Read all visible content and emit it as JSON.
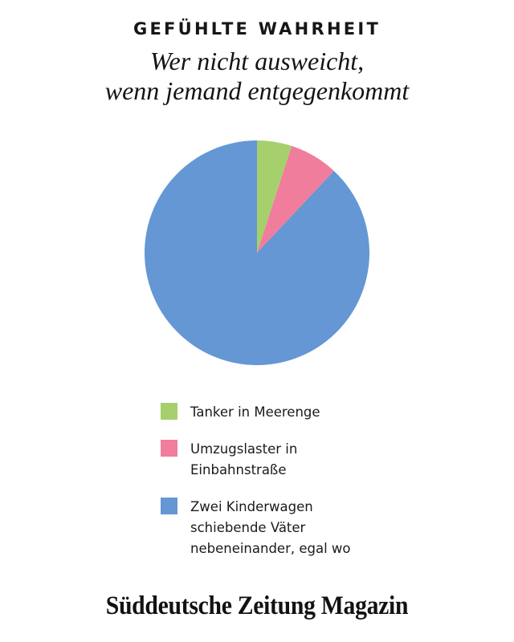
{
  "header": {
    "kicker": "GEFÜHLTE WAHRHEIT",
    "title": "Wer nicht ausweicht,\nwenn jemand entgegenkommt"
  },
  "chart_data": {
    "type": "pie",
    "title": "Wer nicht ausweicht, wenn jemand entgegenkommt",
    "series_name": "Gefühlte Wahrheit",
    "start_angle": "12 o'clock, clockwise",
    "values_unit": "%",
    "values_estimated_from_angles": true,
    "legend_position": "bottom",
    "slices": [
      {
        "label": "Tanker in Meerenge",
        "value": 5,
        "color": "#a6d06c"
      },
      {
        "label": "Umzugslaster in Einbahnstraße",
        "value": 7,
        "color": "#f07d9b"
      },
      {
        "label": "Zwei Kinderwagen schiebende Väter nebeneinander, egal wo",
        "value": 88,
        "color": "#6497d4"
      }
    ]
  },
  "legend": {
    "items": [
      {
        "label": "Tanker in Meerenge",
        "color": "#a6d06c"
      },
      {
        "label": "Umzugslaster in\nEinbahnstraße",
        "color": "#f07d9b"
      },
      {
        "label": "Zwei Kinderwagen\nschiebende Väter\nnebeneinander, egal wo",
        "color": "#6497d4"
      }
    ]
  },
  "footer": {
    "logo": "Süddeutsche Zeitung Magazin"
  }
}
